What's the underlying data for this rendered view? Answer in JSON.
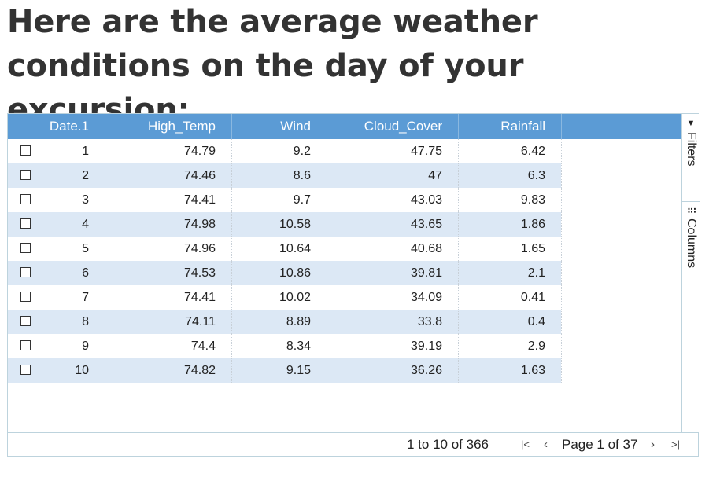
{
  "heading": "Here are the average weather conditions on the day of your excursion:",
  "table": {
    "columns": [
      "Date.1",
      "High_Temp",
      "Wind",
      "Cloud_Cover",
      "Rainfall"
    ],
    "rows": [
      [
        "1",
        "74.79",
        "9.2",
        "47.75",
        "6.42"
      ],
      [
        "2",
        "74.46",
        "8.6",
        "47",
        "6.3"
      ],
      [
        "3",
        "74.41",
        "9.7",
        "43.03",
        "9.83"
      ],
      [
        "4",
        "74.98",
        "10.58",
        "43.65",
        "1.86"
      ],
      [
        "5",
        "74.96",
        "10.64",
        "40.68",
        "1.65"
      ],
      [
        "6",
        "74.53",
        "10.86",
        "39.81",
        "2.1"
      ],
      [
        "7",
        "74.41",
        "10.02",
        "34.09",
        "0.41"
      ],
      [
        "8",
        "74.11",
        "8.89",
        "33.8",
        "0.4"
      ],
      [
        "9",
        "74.4",
        "8.34",
        "39.19",
        "2.9"
      ],
      [
        "10",
        "74.82",
        "9.15",
        "36.26",
        "1.63"
      ]
    ]
  },
  "sidebar": {
    "filters_label": "Filters",
    "filters_icon": "filter-icon",
    "columns_label": "Columns",
    "columns_icon": "columns-icon"
  },
  "pagination": {
    "range_text": "1 to 10 of 366",
    "page_text": "Page 1 of 37",
    "first_icon": "first-page-icon",
    "prev_icon": "previous-page-icon",
    "next_icon": "next-page-icon",
    "last_icon": "last-page-icon"
  },
  "colors": {
    "header_bg": "#5b9bd5",
    "alt_row_bg": "#dce8f5",
    "border": "#bdd3dd"
  }
}
